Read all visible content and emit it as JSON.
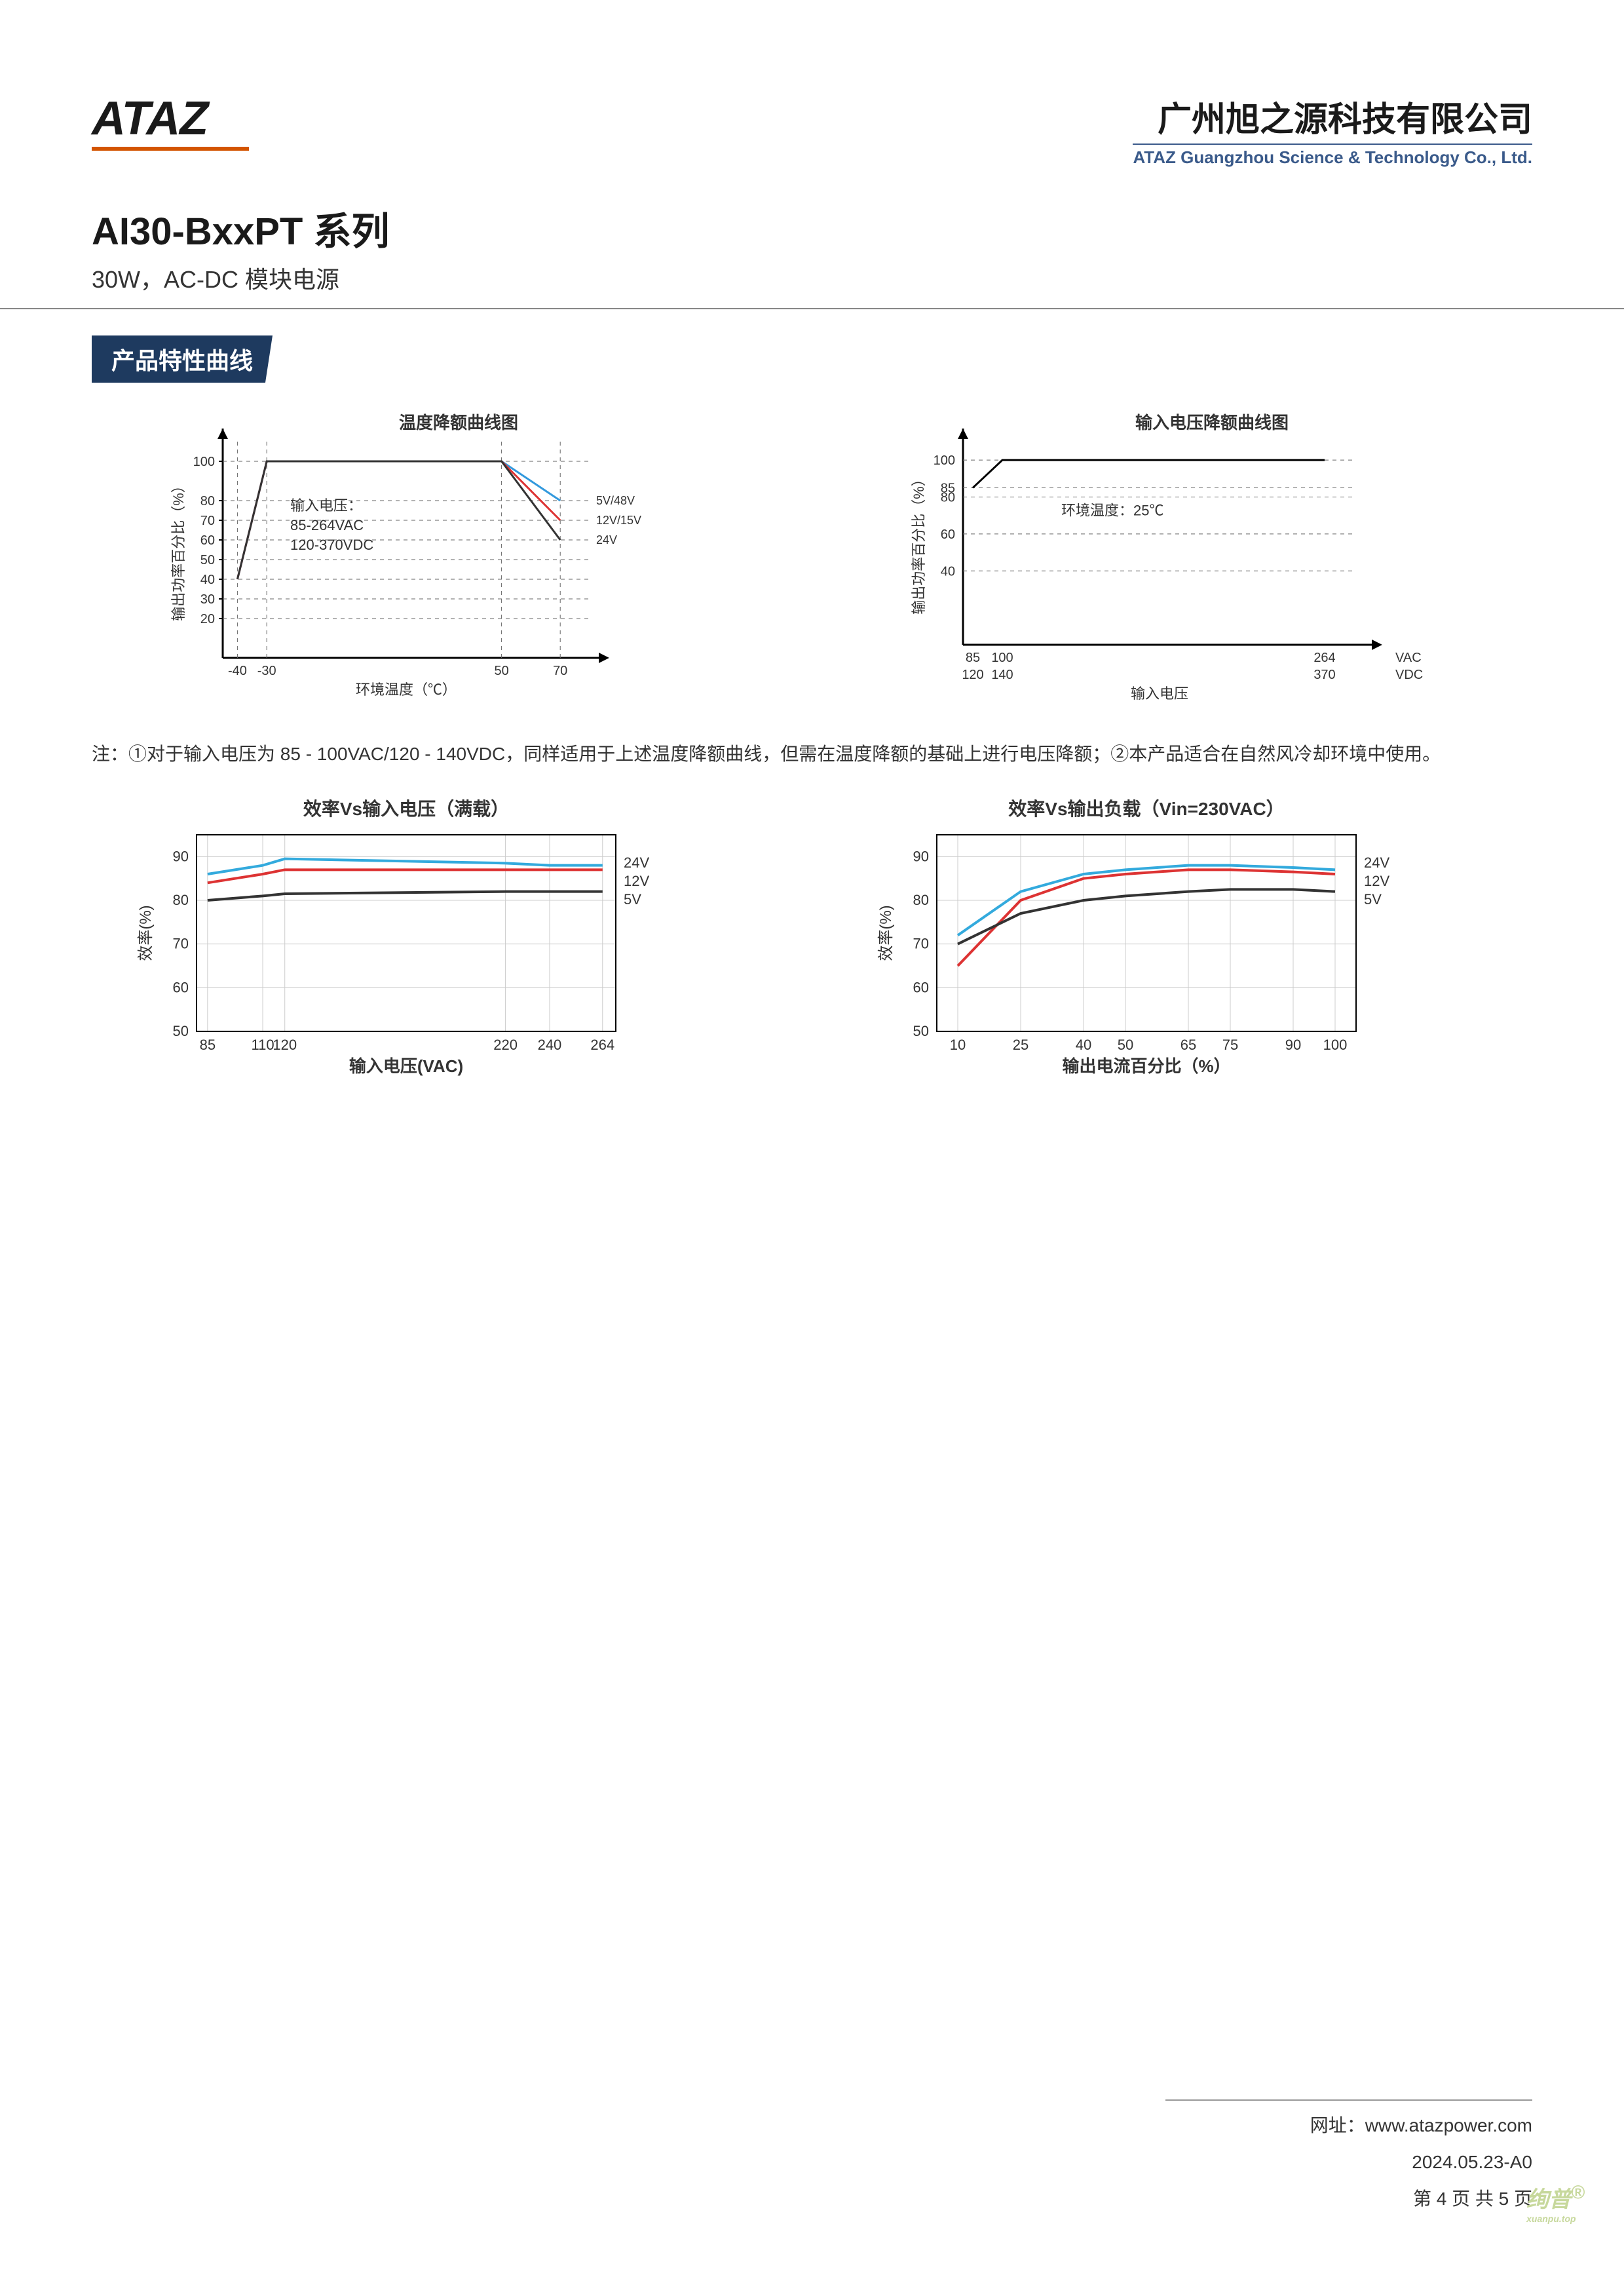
{
  "header": {
    "logo": "ATAZ",
    "company_cn": "广州旭之源科技有限公司",
    "company_en": "ATAZ Guangzhou Science & Technology Co., Ltd."
  },
  "title": {
    "model": "AI30-BxxPT 系列",
    "subtitle": "30W，AC-DC 模块电源"
  },
  "section_tag": "产品特性曲线",
  "note": "注：①对于输入电压为 85 - 100VAC/120 - 140VDC，同样适用于上述温度降额曲线，但需在温度降额的基础上进行电压降额；②本产品适合在自然风冷却环境中使用。",
  "chart1": {
    "type": "line",
    "title": "温度降额曲线图",
    "ylabel": "输出功率百分比（%）",
    "xlabel": "环境温度（℃）",
    "yticks": [
      20,
      30,
      40,
      50,
      60,
      70,
      80,
      100
    ],
    "xticks": [
      -40,
      -30,
      50,
      70
    ],
    "ylim": [
      0,
      110
    ],
    "xlim": [
      -45,
      80
    ],
    "annotation1": "输入电压：",
    "annotation2": "85-264VAC",
    "annotation3": "120-370VDC",
    "series": [
      {
        "label": "5V/48V",
        "color": "#3399dd",
        "points": [
          [
            -40,
            40
          ],
          [
            -30,
            100
          ],
          [
            50,
            100
          ],
          [
            70,
            80
          ]
        ]
      },
      {
        "label": "12V/15V",
        "color": "#dd3333",
        "points": [
          [
            -40,
            40
          ],
          [
            -30,
            100
          ],
          [
            50,
            100
          ],
          [
            70,
            70
          ]
        ]
      },
      {
        "label": "24V",
        "color": "#333333",
        "points": [
          [
            -40,
            40
          ],
          [
            -30,
            100
          ],
          [
            50,
            100
          ],
          [
            70,
            60
          ]
        ]
      }
    ],
    "axis_color": "#000000",
    "grid_color": "#666666",
    "label_fontsize": 22
  },
  "chart2": {
    "type": "line",
    "title": "输入电压降额曲线图",
    "ylabel": "输出功率百分比（%）",
    "xlabel": "输入电压",
    "yticks": [
      40,
      60,
      80,
      85,
      100
    ],
    "xticks_top": [
      "85",
      "100",
      "264",
      "VAC"
    ],
    "xticks_bot": [
      "120",
      "140",
      "370",
      "VDC"
    ],
    "ylim": [
      0,
      110
    ],
    "annotation": "环境温度：25℃",
    "series": [
      {
        "color": "#000000",
        "points": [
          [
            85,
            85
          ],
          [
            100,
            100
          ],
          [
            264,
            100
          ]
        ]
      }
    ],
    "axis_color": "#000000",
    "grid_color": "#666666"
  },
  "chart3": {
    "type": "line",
    "title": "效率Vs输入电压（满载）",
    "ylabel": "效率(%)",
    "xlabel": "输入电压(VAC)",
    "yticks": [
      50,
      60,
      70,
      80,
      90
    ],
    "xticks": [
      85,
      110,
      120,
      220,
      240,
      264
    ],
    "ylim": [
      50,
      95
    ],
    "xlim": [
      80,
      270
    ],
    "series": [
      {
        "label": "24V",
        "color": "#33aadd",
        "points": [
          [
            85,
            86
          ],
          [
            110,
            88
          ],
          [
            120,
            89.5
          ],
          [
            220,
            88.5
          ],
          [
            240,
            88
          ],
          [
            264,
            88
          ]
        ]
      },
      {
        "label": "12V",
        "color": "#dd3333",
        "points": [
          [
            85,
            84
          ],
          [
            110,
            86
          ],
          [
            120,
            87
          ],
          [
            220,
            87
          ],
          [
            240,
            87
          ],
          [
            264,
            87
          ]
        ]
      },
      {
        "label": "5V",
        "color": "#333333",
        "points": [
          [
            85,
            80
          ],
          [
            110,
            81
          ],
          [
            120,
            81.5
          ],
          [
            220,
            82
          ],
          [
            240,
            82
          ],
          [
            264,
            82
          ]
        ]
      }
    ],
    "grid_color": "#cccccc",
    "axis_color": "#000000"
  },
  "chart4": {
    "type": "line",
    "title": "效率Vs输出负载（Vin=230VAC）",
    "ylabel": "效率(%)",
    "xlabel": "输出电流百分比（%）",
    "yticks": [
      50,
      60,
      70,
      80,
      90
    ],
    "xticks": [
      10,
      25,
      40,
      50,
      65,
      75,
      90,
      100
    ],
    "ylim": [
      50,
      95
    ],
    "xlim": [
      5,
      105
    ],
    "series": [
      {
        "label": "24V",
        "color": "#33aadd",
        "points": [
          [
            10,
            72
          ],
          [
            25,
            82
          ],
          [
            40,
            86
          ],
          [
            50,
            87
          ],
          [
            65,
            88
          ],
          [
            75,
            88
          ],
          [
            90,
            87.5
          ],
          [
            100,
            87
          ]
        ]
      },
      {
        "label": "12V",
        "color": "#dd3333",
        "points": [
          [
            10,
            65
          ],
          [
            25,
            80
          ],
          [
            40,
            85
          ],
          [
            50,
            86
          ],
          [
            65,
            87
          ],
          [
            75,
            87
          ],
          [
            90,
            86.5
          ],
          [
            100,
            86
          ]
        ]
      },
      {
        "label": "5V",
        "color": "#333333",
        "points": [
          [
            10,
            70
          ],
          [
            25,
            77
          ],
          [
            40,
            80
          ],
          [
            50,
            81
          ],
          [
            65,
            82
          ],
          [
            75,
            82.5
          ],
          [
            90,
            82.5
          ],
          [
            100,
            82
          ]
        ]
      }
    ],
    "grid_color": "#cccccc",
    "axis_color": "#000000"
  },
  "footer": {
    "url_label": "网址：",
    "url": "www.atazpower.com",
    "date": "2024.05.23-A0",
    "page": "第 4 页 共 5 页"
  },
  "watermark": {
    "main": "绚普",
    "reg": "®",
    "sub": "xuanpu.top"
  }
}
